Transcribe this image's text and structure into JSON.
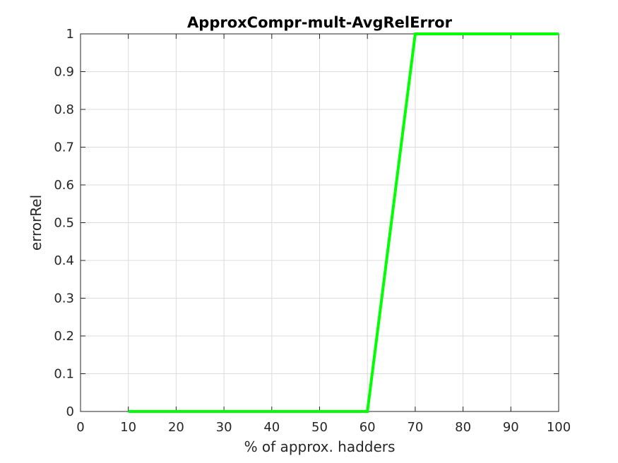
{
  "chart_data": {
    "type": "line",
    "title": "ApproxCompr-mult-AvgRelError",
    "xlabel": "% of approx. hadders",
    "ylabel": "errorRel",
    "xlim": [
      0,
      100
    ],
    "ylim": [
      0,
      1
    ],
    "xticks": [
      0,
      10,
      20,
      30,
      40,
      50,
      60,
      70,
      80,
      90,
      100
    ],
    "yticks": [
      0,
      0.1,
      0.2,
      0.3,
      0.4,
      0.5,
      0.6,
      0.7,
      0.8,
      0.9,
      1
    ],
    "xtick_labels": [
      "0",
      "10",
      "20",
      "30",
      "40",
      "50",
      "60",
      "70",
      "80",
      "90",
      "100"
    ],
    "ytick_labels": [
      "0",
      "0.1",
      "0.2",
      "0.3",
      "0.4",
      "0.5",
      "0.6",
      "0.7",
      "0.8",
      "0.9",
      "1"
    ],
    "grid": true,
    "legend": "none",
    "series": [
      {
        "color": "#00ff00",
        "x": [
          10,
          20,
          30,
          40,
          50,
          60,
          70,
          80,
          90,
          100
        ],
        "y": [
          0,
          0,
          0,
          0,
          0,
          0,
          1,
          1,
          1,
          1
        ]
      }
    ]
  }
}
